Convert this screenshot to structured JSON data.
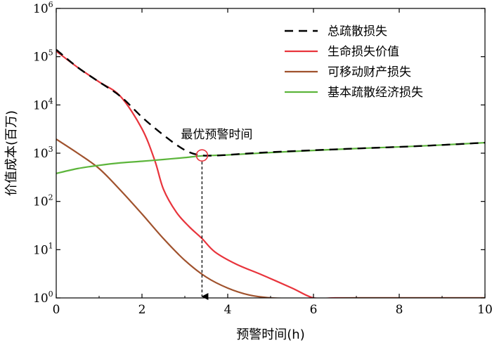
{
  "chart_data": {
    "type": "line",
    "xlabel": "预警时间(h)",
    "ylabel": "价值成本(百万)",
    "xlim": [
      0,
      10
    ],
    "ylim": [
      1,
      1000000
    ],
    "yscale": "log",
    "x_ticks": [
      0,
      2,
      4,
      6,
      8,
      10
    ],
    "y_ticks": [
      {
        "value": 1,
        "base": "10",
        "exp": "0"
      },
      {
        "value": 10,
        "base": "10",
        "exp": "1"
      },
      {
        "value": 100,
        "base": "10",
        "exp": "2"
      },
      {
        "value": 1000,
        "base": "10",
        "exp": "3"
      },
      {
        "value": 10000,
        "base": "10",
        "exp": "4"
      },
      {
        "value": 100000,
        "base": "10",
        "exp": "5"
      },
      {
        "value": 1000000,
        "base": "10",
        "exp": "6"
      }
    ],
    "grid": false,
    "legend_position": "top-right",
    "series": [
      {
        "name": "总疏散损失",
        "color": "#000000",
        "dash": true,
        "x": [
          0,
          0.5,
          1,
          1.5,
          2,
          2.4,
          2.8,
          3.1,
          3.4,
          3.8,
          4.2,
          5,
          6,
          7,
          8,
          9,
          10
        ],
        "y": [
          140000,
          60000,
          30000,
          15000,
          5600,
          2800,
          1500,
          1050,
          900,
          900,
          950,
          1050,
          1150,
          1250,
          1350,
          1480,
          1650
        ]
      },
      {
        "name": "生命损失价值",
        "color": "#e8343c",
        "dash": false,
        "x": [
          0,
          0.5,
          1,
          1.5,
          2,
          2.3,
          2.5,
          2.8,
          3.1,
          3.4,
          3.7,
          4.2,
          4.8,
          5.5,
          6,
          6.5,
          7,
          8,
          9,
          10
        ],
        "y": [
          130000,
          60000,
          30000,
          15000,
          3200,
          700,
          180,
          60,
          30,
          17,
          9,
          5,
          3,
          1.6,
          1.0,
          1.0,
          1.0,
          1.0,
          1.0,
          1.0
        ]
      },
      {
        "name": "可移动财产损失",
        "color": "#a0522d",
        "dash": false,
        "x": [
          0,
          0.5,
          1,
          1.5,
          2,
          2.5,
          3,
          3.5,
          4,
          4.5,
          5,
          5.5,
          6,
          6.5,
          7,
          8,
          9,
          10
        ],
        "y": [
          1950,
          1000,
          480,
          170,
          55,
          17,
          6,
          2.7,
          1.6,
          1.15,
          1.0,
          0.97,
          0.96,
          0.98,
          1.0,
          1.0,
          1.0,
          1.0
        ]
      },
      {
        "name": "基本疏散经济损失",
        "color": "#5cb53b",
        "dash": false,
        "x": [
          0,
          0.5,
          1,
          1.5,
          2,
          2.5,
          3,
          3.4,
          4,
          5,
          6,
          7,
          8,
          9,
          10
        ],
        "y": [
          380,
          480,
          560,
          630,
          680,
          740,
          810,
          880,
          920,
          1030,
          1140,
          1250,
          1350,
          1480,
          1650
        ]
      }
    ],
    "annotations": [
      {
        "text": "最优预警时间",
        "x": 3.4,
        "y": 900
      }
    ]
  }
}
